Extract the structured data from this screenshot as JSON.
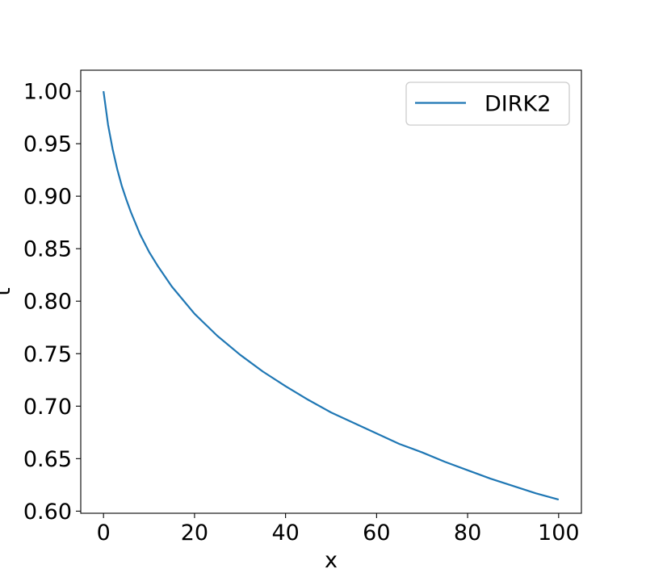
{
  "chart_data": {
    "type": "line",
    "title": "",
    "xlabel": "x",
    "ylabel": "t",
    "xlim": [
      -5,
      105
    ],
    "ylim": [
      0.598,
      1.02
    ],
    "xticks": [
      0,
      20,
      40,
      60,
      80,
      100
    ],
    "xtick_labels": [
      "0",
      "20",
      "40",
      "60",
      "80",
      "100"
    ],
    "yticks": [
      0.6,
      0.65,
      0.7,
      0.75,
      0.8,
      0.85,
      0.9,
      0.95,
      1.0
    ],
    "ytick_labels": [
      "0.60",
      "0.65",
      "0.70",
      "0.75",
      "0.80",
      "0.85",
      "0.90",
      "0.95",
      "1.00"
    ],
    "grid": false,
    "legend_position": "top-right",
    "series": [
      {
        "name": "DIRK2",
        "color": "#1f77b4",
        "x": [
          0,
          1,
          2,
          3,
          4,
          5,
          6,
          8,
          10,
          12,
          15,
          20,
          25,
          30,
          35,
          40,
          45,
          50,
          55,
          60,
          65,
          70,
          75,
          80,
          85,
          90,
          95,
          100
        ],
        "y": [
          1.0,
          0.968,
          0.945,
          0.926,
          0.91,
          0.897,
          0.885,
          0.864,
          0.847,
          0.833,
          0.814,
          0.788,
          0.767,
          0.749,
          0.733,
          0.719,
          0.706,
          0.694,
          0.684,
          0.674,
          0.664,
          0.656,
          0.647,
          0.639,
          0.631,
          0.624,
          0.617,
          0.611
        ]
      }
    ]
  }
}
